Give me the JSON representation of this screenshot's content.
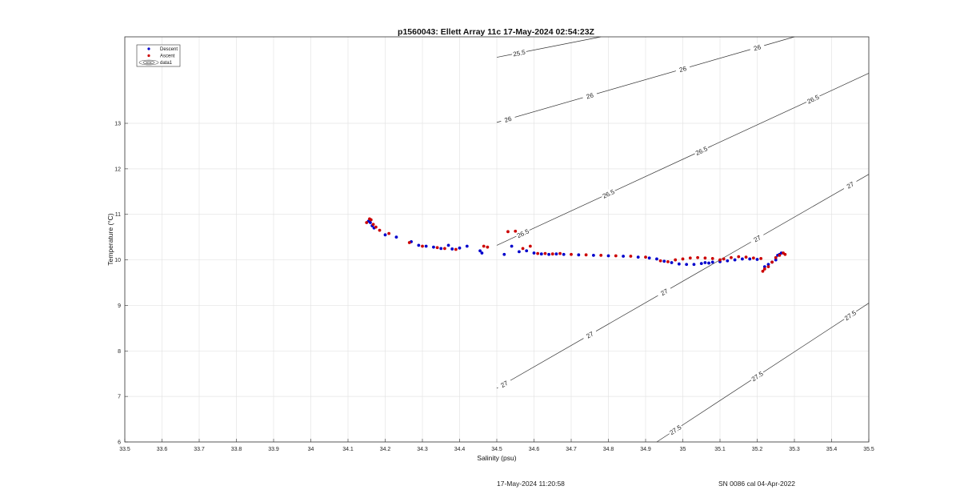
{
  "chart_data": {
    "type": "scatter",
    "title": "p1560043: Ellett Array 11c 17-May-2024 02:54:23Z",
    "xlabel": "Salinity (psu)",
    "ylabel": "Temperature (°C)",
    "xlim": [
      33.5,
      35.5
    ],
    "ylim": [
      6,
      14.9
    ],
    "x_ticks": [
      "33.5",
      "33.6",
      "33.7",
      "33.8",
      "33.9",
      "34",
      "34.1",
      "34.2",
      "34.3",
      "34.4",
      "34.5",
      "34.6",
      "34.7",
      "34.8",
      "34.9",
      "35",
      "35.1",
      "35.2",
      "35.3",
      "35.4",
      "35.5"
    ],
    "y_ticks": [
      "6",
      "7",
      "8",
      "9",
      "10",
      "11",
      "12",
      "13"
    ],
    "grid": true,
    "legend_position": "top-left",
    "legend": [
      {
        "label": "Descent",
        "marker": "dot",
        "color": "#0000cc"
      },
      {
        "label": "Ascent",
        "marker": "dot",
        "color": "#cc0000"
      },
      {
        "label": "data1",
        "marker": "contour",
        "color": "#555555"
      }
    ],
    "series": [
      {
        "name": "Descent",
        "color": "#0000cc",
        "points": [
          [
            34.155,
            10.85
          ],
          [
            34.16,
            10.82
          ],
          [
            34.165,
            10.75
          ],
          [
            34.17,
            10.7
          ],
          [
            34.2,
            10.55
          ],
          [
            34.23,
            10.5
          ],
          [
            34.27,
            10.4
          ],
          [
            34.29,
            10.32
          ],
          [
            34.31,
            10.3
          ],
          [
            34.33,
            10.28
          ],
          [
            34.35,
            10.25
          ],
          [
            34.37,
            10.32
          ],
          [
            34.38,
            10.24
          ],
          [
            34.4,
            10.26
          ],
          [
            34.42,
            10.3
          ],
          [
            34.455,
            10.2
          ],
          [
            34.46,
            10.15
          ],
          [
            34.52,
            10.12
          ],
          [
            34.54,
            10.3
          ],
          [
            34.56,
            10.18
          ],
          [
            34.58,
            10.2
          ],
          [
            34.6,
            10.15
          ],
          [
            34.62,
            10.13
          ],
          [
            34.64,
            10.12
          ],
          [
            34.66,
            10.13
          ],
          [
            34.68,
            10.12
          ],
          [
            34.72,
            10.11
          ],
          [
            34.76,
            10.1
          ],
          [
            34.8,
            10.09
          ],
          [
            34.84,
            10.08
          ],
          [
            34.88,
            10.06
          ],
          [
            34.91,
            10.04
          ],
          [
            34.93,
            10.02
          ],
          [
            34.95,
            9.97
          ],
          [
            34.97,
            9.94
          ],
          [
            34.99,
            9.91
          ],
          [
            35.01,
            9.9
          ],
          [
            35.03,
            9.9
          ],
          [
            35.05,
            9.92
          ],
          [
            35.06,
            9.94
          ],
          [
            35.07,
            9.93
          ],
          [
            35.08,
            9.95
          ],
          [
            35.1,
            9.96
          ],
          [
            35.12,
            9.98
          ],
          [
            35.14,
            10.0
          ],
          [
            35.16,
            10.02
          ],
          [
            35.18,
            10.02
          ],
          [
            35.2,
            10.01
          ],
          [
            35.22,
            9.85
          ],
          [
            35.23,
            9.9
          ],
          [
            35.24,
            9.95
          ],
          [
            35.25,
            10.0
          ],
          [
            35.255,
            10.1
          ],
          [
            35.26,
            10.12
          ],
          [
            35.265,
            10.15
          ]
        ]
      },
      {
        "name": "Ascent",
        "color": "#cc0000",
        "points": [
          [
            34.15,
            10.82
          ],
          [
            34.158,
            10.9
          ],
          [
            34.162,
            10.88
          ],
          [
            34.168,
            10.78
          ],
          [
            34.175,
            10.72
          ],
          [
            34.185,
            10.65
          ],
          [
            34.21,
            10.58
          ],
          [
            34.265,
            10.38
          ],
          [
            34.3,
            10.3
          ],
          [
            34.34,
            10.27
          ],
          [
            34.36,
            10.25
          ],
          [
            34.39,
            10.23
          ],
          [
            34.465,
            10.3
          ],
          [
            34.475,
            10.28
          ],
          [
            34.53,
            10.62
          ],
          [
            34.55,
            10.63
          ],
          [
            34.57,
            10.25
          ],
          [
            34.59,
            10.3
          ],
          [
            34.61,
            10.14
          ],
          [
            34.63,
            10.14
          ],
          [
            34.65,
            10.13
          ],
          [
            34.67,
            10.14
          ],
          [
            34.7,
            10.12
          ],
          [
            34.74,
            10.11
          ],
          [
            34.78,
            10.1
          ],
          [
            34.82,
            10.09
          ],
          [
            34.86,
            10.08
          ],
          [
            34.9,
            10.06
          ],
          [
            34.94,
            9.98
          ],
          [
            34.96,
            9.96
          ],
          [
            34.98,
            10.0
          ],
          [
            35.0,
            10.02
          ],
          [
            35.02,
            10.04
          ],
          [
            35.04,
            10.05
          ],
          [
            35.06,
            10.04
          ],
          [
            35.08,
            10.03
          ],
          [
            35.1,
            10.0
          ],
          [
            35.11,
            10.02
          ],
          [
            35.13,
            10.05
          ],
          [
            35.15,
            10.07
          ],
          [
            35.17,
            10.06
          ],
          [
            35.19,
            10.04
          ],
          [
            35.21,
            10.03
          ],
          [
            35.215,
            9.75
          ],
          [
            35.22,
            9.8
          ],
          [
            35.23,
            9.85
          ],
          [
            35.24,
            9.95
          ],
          [
            35.25,
            10.05
          ],
          [
            35.26,
            10.1
          ],
          [
            35.27,
            10.15
          ],
          [
            35.275,
            10.12
          ]
        ]
      }
    ],
    "contours": [
      {
        "label": "25.5",
        "points": [
          [
            34.5,
            14.45
          ],
          [
            34.78,
            14.9
          ]
        ],
        "label_x": [
          34.56
        ]
      },
      {
        "label": "26",
        "points": [
          [
            34.5,
            13.02
          ],
          [
            35.3,
            14.9
          ]
        ],
        "label_x": [
          34.53,
          34.75,
          35.0,
          35.2
        ]
      },
      {
        "label": "26.5",
        "points": [
          [
            34.5,
            10.32
          ],
          [
            35.5,
            14.1
          ]
        ],
        "label_x": [
          34.57,
          34.8,
          35.05,
          35.35
        ]
      },
      {
        "label": "27",
        "points": [
          [
            34.5,
            7.18
          ],
          [
            35.5,
            11.88
          ]
        ],
        "label_x": [
          34.52,
          34.75,
          34.95,
          35.2,
          35.45
        ]
      },
      {
        "label": "27.5",
        "points": [
          [
            34.93,
            6.0
          ],
          [
            35.5,
            9.05
          ]
        ],
        "label_x": [
          34.98,
          35.2,
          35.45
        ]
      }
    ]
  },
  "footer": {
    "timestamp": "17-May-2024 11:20:58",
    "sensor": "SN 0086 cal 04-Apr-2022"
  }
}
